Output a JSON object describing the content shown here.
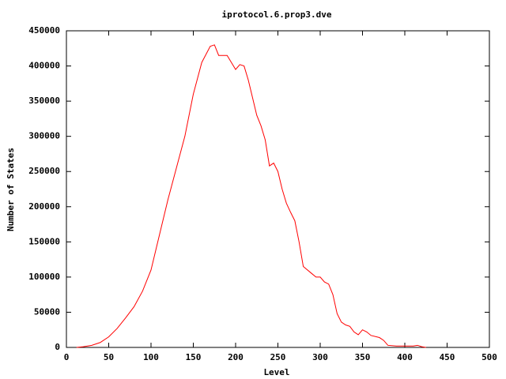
{
  "chart_data": {
    "type": "line",
    "title": "iprotocol.6.prop3.dve",
    "x_label": "Level",
    "y_label": "Number of States",
    "xlim": [
      0,
      500
    ],
    "ylim": [
      0,
      450000
    ],
    "xticks": [
      0,
      50,
      100,
      150,
      200,
      250,
      300,
      350,
      400,
      450,
      500
    ],
    "yticks": [
      0,
      50000,
      100000,
      150000,
      200000,
      250000,
      300000,
      350000,
      400000,
      450000
    ],
    "x": [
      12,
      20,
      30,
      40,
      50,
      60,
      70,
      80,
      90,
      100,
      110,
      120,
      130,
      140,
      150,
      160,
      170,
      175,
      180,
      190,
      195,
      200,
      205,
      210,
      215,
      220,
      225,
      230,
      235,
      240,
      245,
      250,
      255,
      260,
      265,
      270,
      275,
      280,
      290,
      295,
      300,
      305,
      310,
      315,
      320,
      325,
      330,
      335,
      340,
      345,
      350,
      355,
      360,
      370,
      375,
      380,
      390,
      400,
      410,
      415,
      420,
      425
    ],
    "series": [
      {
        "name": "states",
        "color": "#ff0000",
        "values": [
          0,
          1000,
          3000,
          7000,
          15000,
          27000,
          42000,
          58000,
          80000,
          110000,
          160000,
          210000,
          255000,
          300000,
          360000,
          405000,
          428000,
          430000,
          415000,
          415000,
          405000,
          395000,
          402000,
          400000,
          380000,
          355000,
          330000,
          315000,
          295000,
          258000,
          262000,
          250000,
          225000,
          205000,
          192000,
          180000,
          150000,
          115000,
          105000,
          100000,
          100000,
          93000,
          90000,
          75000,
          48000,
          36000,
          32000,
          30000,
          22000,
          18000,
          25000,
          22000,
          17000,
          14000,
          10000,
          3000,
          2000,
          2000,
          2000,
          3000,
          1000,
          0
        ]
      }
    ]
  }
}
